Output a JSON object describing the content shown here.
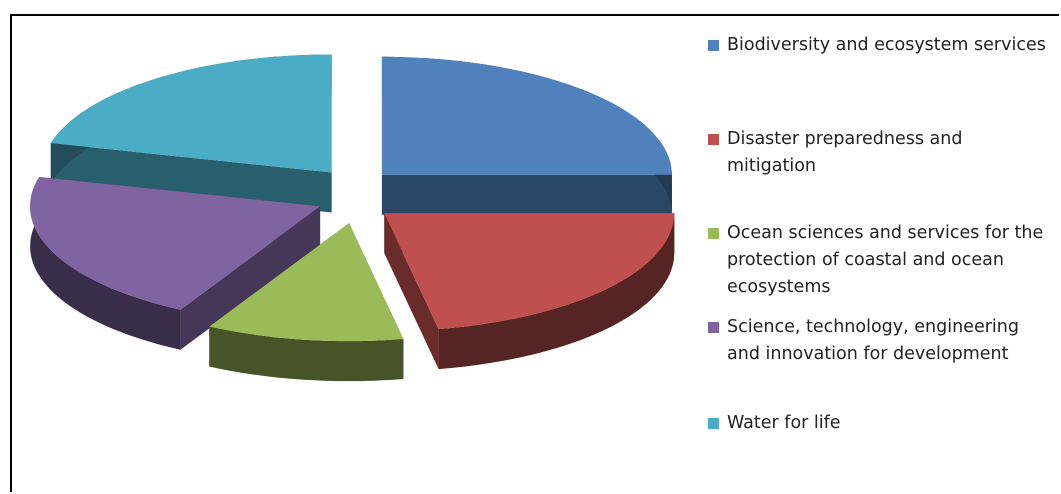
{
  "chart_data": {
    "type": "pie",
    "categories": [
      "Biodiversity and ecosystem services",
      "Disaster preparedness and mitigation",
      "Ocean sciences and services for the protection of coastal and ocean ecosystems",
      "Science, technology, engineering and innovation for development",
      "Water for life"
    ],
    "values": [
      25,
      22,
      11,
      21,
      21
    ],
    "colors": [
      "#4f81bd",
      "#c0504d",
      "#9bbb59",
      "#8064a2",
      "#4bacc6"
    ],
    "legend": "right"
  }
}
